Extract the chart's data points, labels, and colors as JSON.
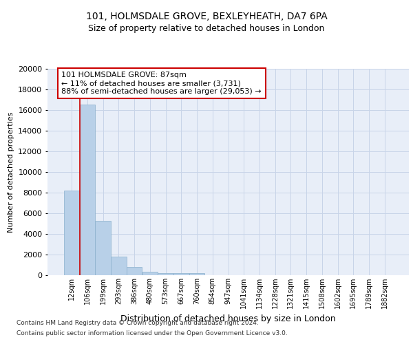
{
  "title1": "101, HOLMSDALE GROVE, BEXLEYHEATH, DA7 6PA",
  "title2": "Size of property relative to detached houses in London",
  "xlabel": "Distribution of detached houses by size in London",
  "ylabel": "Number of detached properties",
  "categories": [
    "12sqm",
    "106sqm",
    "199sqm",
    "293sqm",
    "386sqm",
    "480sqm",
    "573sqm",
    "667sqm",
    "760sqm",
    "854sqm",
    "947sqm",
    "1041sqm",
    "1134sqm",
    "1228sqm",
    "1321sqm",
    "1415sqm",
    "1508sqm",
    "1602sqm",
    "1695sqm",
    "1789sqm",
    "1882sqm"
  ],
  "values": [
    8200,
    16500,
    5300,
    1800,
    800,
    350,
    200,
    200,
    200,
    0,
    0,
    0,
    0,
    0,
    0,
    0,
    0,
    0,
    0,
    0,
    0
  ],
  "bar_color": "#b8d0e8",
  "bar_edge_color": "#8ab0cc",
  "annotation_line1": "101 HOLMSDALE GROVE: 87sqm",
  "annotation_line2": "← 11% of detached houses are smaller (3,731)",
  "annotation_line3": "88% of semi-detached houses are larger (29,053) →",
  "annotation_box_color": "#ffffff",
  "annotation_box_edge": "#cc0000",
  "vline_color": "#cc0000",
  "vline_x": 0.5,
  "ylim_max": 20000,
  "yticks": [
    0,
    2000,
    4000,
    6000,
    8000,
    10000,
    12000,
    14000,
    16000,
    18000,
    20000
  ],
  "grid_color": "#c8d4e8",
  "bg_color": "#e8eef8",
  "footer1": "Contains HM Land Registry data © Crown copyright and database right 2024.",
  "footer2": "Contains public sector information licensed under the Open Government Licence v3.0."
}
